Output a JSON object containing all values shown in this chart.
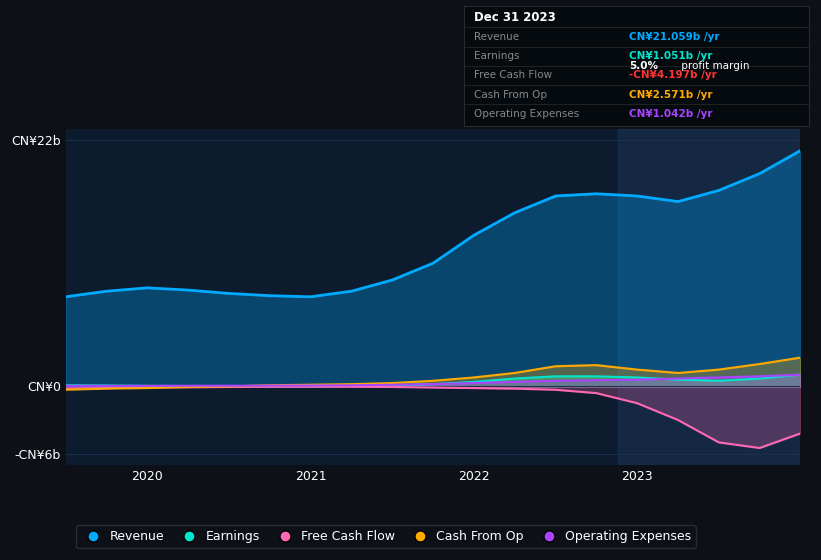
{
  "background_color": "#0d1117",
  "plot_bg_color": "#0d1b2e",
  "tooltip": {
    "date": "Dec 31 2023",
    "revenue": "CN¥21.059b /yr",
    "earnings": "CN¥1.051b /yr",
    "profit_margin": "5.0%",
    "free_cash_flow": "-CN¥4.197b /yr",
    "cash_from_op": "CN¥2.571b /yr",
    "operating_expenses": "CN¥1.042b /yr"
  },
  "x_labels": [
    "2020",
    "2021",
    "2022",
    "2023"
  ],
  "ylim": [
    -7000000000,
    23000000000
  ],
  "y_ticks": [
    -6000000000,
    0,
    22000000000
  ],
  "y_tick_labels": [
    "-CN¥6b",
    "CN¥0",
    "CN¥22b"
  ],
  "colors": {
    "revenue": "#00aaff",
    "earnings": "#00e5cc",
    "free_cash_flow": "#ff69b4",
    "cash_from_op": "#ffaa00",
    "operating_expenses": "#aa44ff"
  },
  "series": {
    "x": [
      2019.5,
      2019.75,
      2020.0,
      2020.25,
      2020.5,
      2020.75,
      2021.0,
      2021.25,
      2021.5,
      2021.75,
      2022.0,
      2022.25,
      2022.5,
      2022.75,
      2023.0,
      2023.25,
      2023.5,
      2023.75,
      2024.0
    ],
    "revenue": [
      8000000000,
      8500000000,
      8800000000,
      8600000000,
      8300000000,
      8100000000,
      8000000000,
      8500000000,
      9500000000,
      11000000000,
      13500000000,
      15500000000,
      17000000000,
      17200000000,
      17000000000,
      16500000000,
      17500000000,
      19000000000,
      21059000000
    ],
    "earnings": [
      100000000,
      80000000,
      50000000,
      30000000,
      20000000,
      10000000,
      0,
      50000000,
      100000000,
      200000000,
      400000000,
      700000000,
      900000000,
      900000000,
      800000000,
      600000000,
      500000000,
      700000000,
      1051000000
    ],
    "free_cash_flow": [
      -200000000,
      -150000000,
      -100000000,
      -80000000,
      -50000000,
      -30000000,
      -20000000,
      -20000000,
      -50000000,
      -100000000,
      -150000000,
      -200000000,
      -300000000,
      -600000000,
      -1500000000,
      -3000000000,
      -5000000000,
      -5500000000,
      -4197000000
    ],
    "cash_from_op": [
      -300000000,
      -200000000,
      -150000000,
      -50000000,
      0,
      100000000,
      150000000,
      200000000,
      300000000,
      500000000,
      800000000,
      1200000000,
      1800000000,
      1900000000,
      1500000000,
      1200000000,
      1500000000,
      2000000000,
      2571000000
    ],
    "operating_expenses": [
      50000000,
      50000000,
      50000000,
      60000000,
      60000000,
      70000000,
      80000000,
      100000000,
      150000000,
      200000000,
      300000000,
      400000000,
      500000000,
      550000000,
      600000000,
      700000000,
      800000000,
      900000000,
      1042000000
    ]
  },
  "legend_items": [
    {
      "label": "Revenue",
      "color": "#00aaff"
    },
    {
      "label": "Earnings",
      "color": "#00e5cc"
    },
    {
      "label": "Free Cash Flow",
      "color": "#ff69b4"
    },
    {
      "label": "Cash From Op",
      "color": "#ffaa00"
    },
    {
      "label": "Operating Expenses",
      "color": "#aa44ff"
    }
  ],
  "grid_color": "#1e3050",
  "zero_line_color": "#334466",
  "highlight_color": "#1e3a5f"
}
